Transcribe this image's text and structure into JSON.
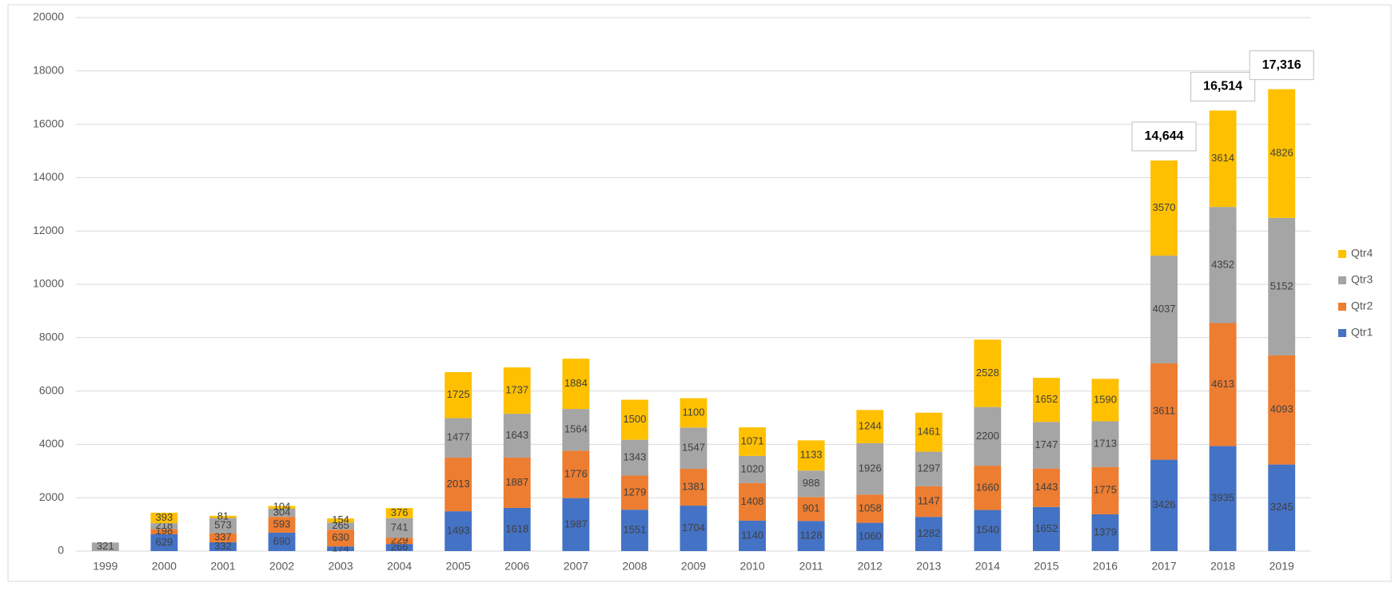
{
  "chart_data": {
    "type": "stacked_bar",
    "categories": [
      "1999",
      "2000",
      "2001",
      "2002",
      "2003",
      "2004",
      "2005",
      "2006",
      "2007",
      "2008",
      "2009",
      "2010",
      "2011",
      "2012",
      "2013",
      "2014",
      "2015",
      "2016",
      "2017",
      "2018",
      "2019"
    ],
    "series": [
      {
        "name": "Qtr1",
        "color": "#4472c4",
        "values": [
          null,
          629,
          332,
          690,
          174,
          266,
          1493,
          1618,
          1987,
          1551,
          1704,
          1140,
          1128,
          1060,
          1282,
          1540,
          1652,
          1379,
          3426,
          3935,
          3245
        ]
      },
      {
        "name": "Qtr2",
        "color": "#ed7d31",
        "values": [
          null,
          198,
          337,
          593,
          630,
          229,
          2013,
          1887,
          1776,
          1279,
          1381,
          1408,
          901,
          1058,
          1147,
          1660,
          1443,
          1775,
          3611,
          4613,
          4093
        ]
      },
      {
        "name": "Qtr3",
        "color": "#a5a5a5",
        "values": [
          321,
          218,
          573,
          304,
          265,
          741,
          1477,
          1643,
          1564,
          1343,
          1547,
          1020,
          988,
          1926,
          1297,
          2200,
          1747,
          1713,
          4037,
          4352,
          5152
        ]
      },
      {
        "name": "Qtr4",
        "color": "#ffc000",
        "values": [
          null,
          393,
          81,
          104,
          154,
          376,
          1725,
          1737,
          1884,
          1500,
          1100,
          1071,
          1133,
          1244,
          1461,
          2528,
          1652,
          1590,
          3570,
          3614,
          4826
        ]
      }
    ],
    "annotations": [
      {
        "x": "2017",
        "text": "14,644"
      },
      {
        "x": "2018",
        "text": "16,514"
      },
      {
        "x": "2019",
        "text": "17,316"
      }
    ],
    "ylim": [
      0,
      20000
    ],
    "yticks": [
      0,
      2000,
      4000,
      6000,
      8000,
      10000,
      12000,
      14000,
      16000,
      18000,
      20000
    ],
    "grid": true,
    "legend": "right"
  }
}
